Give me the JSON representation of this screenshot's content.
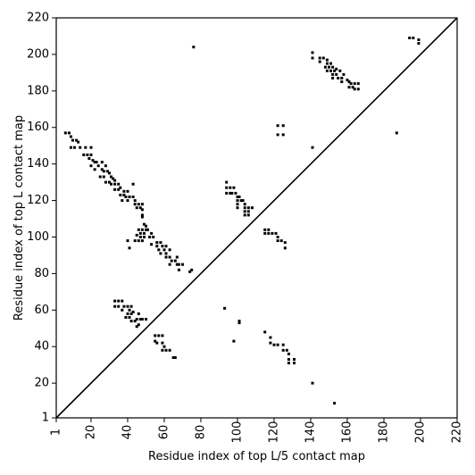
{
  "chart_data": {
    "type": "scatter",
    "xlabel": "Residue index of top L/5 contact map",
    "ylabel": "Residue index of top L contact map",
    "xlim": [
      1,
      220
    ],
    "ylim": [
      1,
      220
    ],
    "x_ticks": [
      1,
      20,
      40,
      60,
      80,
      100,
      120,
      140,
      160,
      180,
      200,
      220
    ],
    "x_tick_labels": [
      "1",
      "20",
      "40",
      "60",
      "80",
      "100",
      "120",
      "140",
      "160",
      "180",
      "200",
      "220"
    ],
    "y_ticks": [
      1,
      20,
      40,
      60,
      80,
      100,
      120,
      140,
      160,
      180,
      200,
      220
    ],
    "y_tick_labels": [
      "1",
      "20",
      "40",
      "60",
      "80",
      "100",
      "120",
      "140",
      "160",
      "180",
      "200",
      "220"
    ],
    "diagonal": [
      [
        1,
        1
      ],
      [
        220,
        220
      ]
    ],
    "marker_color": "#000000",
    "series": [
      {
        "values": [
          [
            6,
            157
          ],
          [
            8,
            157
          ],
          [
            9,
            155
          ],
          [
            10,
            153
          ],
          [
            12,
            153
          ],
          [
            13,
            152
          ],
          [
            9,
            149
          ],
          [
            11,
            149
          ],
          [
            14,
            149
          ],
          [
            17,
            149
          ],
          [
            20,
            149
          ],
          [
            16,
            145
          ],
          [
            18,
            145
          ],
          [
            20,
            145
          ],
          [
            19,
            143
          ],
          [
            21,
            142
          ],
          [
            22,
            141
          ],
          [
            23,
            141
          ],
          [
            26,
            141
          ],
          [
            20,
            139
          ],
          [
            24,
            139
          ],
          [
            28,
            139
          ],
          [
            22,
            137
          ],
          [
            26,
            137
          ],
          [
            27,
            136
          ],
          [
            29,
            136
          ],
          [
            30,
            135
          ],
          [
            25,
            133
          ],
          [
            27,
            133
          ],
          [
            31,
            133
          ],
          [
            32,
            132
          ],
          [
            33,
            131
          ],
          [
            28,
            130
          ],
          [
            30,
            130
          ],
          [
            31,
            129
          ],
          [
            33,
            129
          ],
          [
            35,
            129
          ],
          [
            36,
            127
          ],
          [
            33,
            126
          ],
          [
            35,
            126
          ],
          [
            38,
            125
          ],
          [
            40,
            125
          ],
          [
            36,
            123
          ],
          [
            38,
            123
          ],
          [
            39,
            122
          ],
          [
            41,
            122
          ],
          [
            43,
            122
          ],
          [
            44,
            120
          ],
          [
            37,
            120
          ],
          [
            40,
            120
          ],
          [
            44,
            118
          ],
          [
            46,
            118
          ],
          [
            48,
            118
          ],
          [
            45,
            116
          ],
          [
            47,
            116
          ],
          [
            43,
            129
          ],
          [
            48,
            115
          ],
          [
            48,
            112
          ],
          [
            48,
            111
          ],
          [
            49,
            107
          ],
          [
            50,
            106
          ],
          [
            46,
            104
          ],
          [
            48,
            104
          ],
          [
            50,
            104
          ],
          [
            51,
            104
          ],
          [
            47,
            102
          ],
          [
            49,
            102
          ],
          [
            53,
            102
          ],
          [
            45,
            101
          ],
          [
            47,
            100
          ],
          [
            49,
            100
          ],
          [
            52,
            100
          ],
          [
            54,
            100
          ],
          [
            44,
            98
          ],
          [
            46,
            98
          ],
          [
            48,
            98
          ],
          [
            40,
            98
          ],
          [
            56,
            97
          ],
          [
            58,
            97
          ],
          [
            41,
            94
          ],
          [
            53,
            96
          ],
          [
            56,
            95
          ],
          [
            59,
            95
          ],
          [
            61,
            95
          ],
          [
            57,
            93
          ],
          [
            60,
            93
          ],
          [
            63,
            93
          ],
          [
            58,
            91
          ],
          [
            61,
            91
          ],
          [
            61,
            89
          ],
          [
            63,
            89
          ],
          [
            67,
            89
          ],
          [
            64,
            87
          ],
          [
            66,
            87
          ],
          [
            63,
            85
          ],
          [
            67,
            85
          ],
          [
            68,
            85
          ],
          [
            70,
            85
          ],
          [
            68,
            82
          ],
          [
            75,
            82
          ],
          [
            74,
            81
          ],
          [
            76,
            204
          ],
          [
            33,
            65
          ],
          [
            35,
            65
          ],
          [
            37,
            65
          ],
          [
            33,
            62
          ],
          [
            35,
            62
          ],
          [
            38,
            62
          ],
          [
            40,
            62
          ],
          [
            42,
            62
          ],
          [
            37,
            60
          ],
          [
            41,
            60
          ],
          [
            43,
            59
          ],
          [
            40,
            58
          ],
          [
            42,
            58
          ],
          [
            46,
            58
          ],
          [
            39,
            56
          ],
          [
            41,
            56
          ],
          [
            45,
            55
          ],
          [
            47,
            55
          ],
          [
            48,
            55
          ],
          [
            50,
            55
          ],
          [
            42,
            54
          ],
          [
            44,
            54
          ],
          [
            46,
            52
          ],
          [
            45,
            51
          ],
          [
            55,
            46
          ],
          [
            57,
            46
          ],
          [
            59,
            46
          ],
          [
            55,
            43
          ],
          [
            56,
            42
          ],
          [
            59,
            42
          ],
          [
            60,
            40
          ],
          [
            59,
            38
          ],
          [
            61,
            38
          ],
          [
            63,
            38
          ],
          [
            65,
            34
          ],
          [
            66,
            34
          ],
          [
            94,
            130
          ],
          [
            94,
            127
          ],
          [
            96,
            127
          ],
          [
            98,
            127
          ],
          [
            94,
            124
          ],
          [
            96,
            124
          ],
          [
            97,
            124
          ],
          [
            99,
            124
          ],
          [
            100,
            122
          ],
          [
            101,
            122
          ],
          [
            100,
            120
          ],
          [
            102,
            120
          ],
          [
            103,
            120
          ],
          [
            100,
            118
          ],
          [
            104,
            118
          ],
          [
            100,
            116
          ],
          [
            104,
            116
          ],
          [
            106,
            116
          ],
          [
            108,
            116
          ],
          [
            104,
            114
          ],
          [
            106,
            114
          ],
          [
            104,
            112
          ],
          [
            106,
            112
          ],
          [
            93,
            61
          ],
          [
            101,
            54
          ],
          [
            101,
            53
          ],
          [
            98,
            43
          ],
          [
            115,
            104
          ],
          [
            117,
            104
          ],
          [
            115,
            102
          ],
          [
            117,
            102
          ],
          [
            119,
            102
          ],
          [
            121,
            102
          ],
          [
            122,
            100
          ],
          [
            122,
            98
          ],
          [
            124,
            98
          ],
          [
            126,
            97
          ],
          [
            126,
            94
          ],
          [
            122,
            161
          ],
          [
            125,
            161
          ],
          [
            122,
            156
          ],
          [
            125,
            156
          ],
          [
            115,
            48
          ],
          [
            118,
            45
          ],
          [
            118,
            42
          ],
          [
            120,
            41
          ],
          [
            122,
            41
          ],
          [
            125,
            41
          ],
          [
            125,
            38
          ],
          [
            127,
            38
          ],
          [
            128,
            36
          ],
          [
            128,
            33
          ],
          [
            131,
            33
          ],
          [
            128,
            31
          ],
          [
            131,
            31
          ],
          [
            141,
            20
          ],
          [
            153,
            9
          ],
          [
            141,
            149
          ],
          [
            187,
            157
          ],
          [
            141,
            201
          ],
          [
            141,
            198
          ],
          [
            145,
            198
          ],
          [
            147,
            198
          ],
          [
            149,
            197
          ],
          [
            145,
            196
          ],
          [
            149,
            195
          ],
          [
            151,
            195
          ],
          [
            148,
            193
          ],
          [
            150,
            193
          ],
          [
            152,
            193
          ],
          [
            154,
            192
          ],
          [
            149,
            191
          ],
          [
            151,
            191
          ],
          [
            153,
            191
          ],
          [
            156,
            191
          ],
          [
            152,
            189
          ],
          [
            154,
            189
          ],
          [
            158,
            189
          ],
          [
            152,
            187
          ],
          [
            155,
            187
          ],
          [
            157,
            187
          ],
          [
            160,
            186
          ],
          [
            157,
            185
          ],
          [
            161,
            185
          ],
          [
            162,
            184
          ],
          [
            164,
            184
          ],
          [
            166,
            184
          ],
          [
            161,
            182
          ],
          [
            163,
            182
          ],
          [
            164,
            181
          ],
          [
            166,
            181
          ],
          [
            194,
            209
          ],
          [
            196,
            209
          ],
          [
            199,
            208
          ],
          [
            199,
            206
          ]
        ]
      }
    ]
  }
}
